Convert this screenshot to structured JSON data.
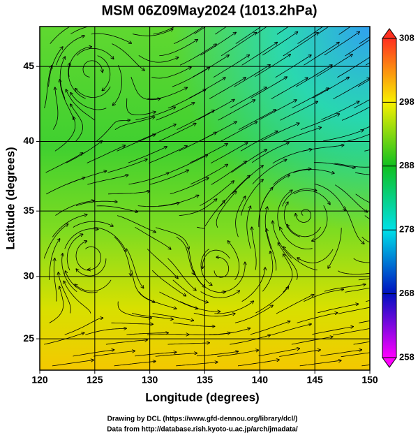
{
  "chart_data": {
    "type": "map",
    "title": "MSM 06Z09May2024 (1013.2hPa)",
    "x_label": "Longitude (degrees)",
    "y_label": "Latitude  (degrees)",
    "projection": "mercator",
    "xlim": [
      120,
      150
    ],
    "ylim": [
      22.4,
      47.5
    ],
    "xticks": [
      120,
      125,
      130,
      135,
      140,
      145,
      150
    ],
    "yticks": [
      25,
      30,
      35,
      40,
      45
    ],
    "grid": true,
    "colorbar": {
      "range": [
        258,
        308
      ],
      "ticks": [
        258,
        268,
        278,
        288,
        298,
        308
      ],
      "colors": [
        "#ff00ff",
        "#0010c0",
        "#00e0e8",
        "#10c020",
        "#f8f000",
        "#ff3020"
      ]
    },
    "credits": [
      "Drawing by DCL (https://www.gfd-dennou.org/library/dcl/)",
      "Data from http://database.rish.kyoto-u.ac.jp/arch/jmadata/"
    ]
  }
}
